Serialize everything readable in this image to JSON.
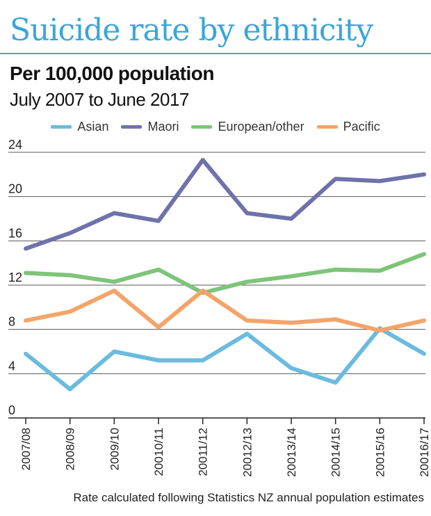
{
  "header": {
    "title": "Suicide rate by ethnicity",
    "subtitle": "Per 100,000 population",
    "date_range": "July 2007 to June 2017"
  },
  "footnote": "Rate calculated following Statistics NZ annual population estimates",
  "chart_data": {
    "type": "line",
    "title": "Suicide rate by ethnicity",
    "subtitle": "Per 100,000 population",
    "xlabel": "",
    "ylabel": "",
    "ylim": [
      0,
      24
    ],
    "yticks": [
      0,
      4,
      8,
      12,
      16,
      20,
      24
    ],
    "grid": true,
    "legend_position": "top-center",
    "categories": [
      "2007/08",
      "2008/09",
      "2009/10",
      "20010/11",
      "20011/12",
      "20012/13",
      "20013/14",
      "20014/15",
      "20015/16",
      "20016/17"
    ],
    "series": [
      {
        "name": "Asian",
        "color": "#6bbbdf",
        "values": [
          5.8,
          2.6,
          6.0,
          5.2,
          5.2,
          7.6,
          4.5,
          3.2,
          8.1,
          5.8
        ]
      },
      {
        "name": "Maori",
        "color": "#6f72aa",
        "values": [
          15.3,
          16.7,
          18.5,
          17.8,
          23.3,
          18.5,
          18.0,
          21.6,
          21.4,
          22.0
        ]
      },
      {
        "name": "European/other",
        "color": "#7ec47a",
        "values": [
          13.1,
          12.9,
          12.3,
          13.4,
          11.3,
          12.3,
          12.8,
          13.4,
          13.3,
          14.8
        ]
      },
      {
        "name": "Pacific",
        "color": "#f4a46a",
        "values": [
          8.8,
          9.6,
          11.5,
          8.2,
          11.5,
          8.8,
          8.6,
          8.9,
          7.9,
          8.8
        ]
      }
    ]
  }
}
